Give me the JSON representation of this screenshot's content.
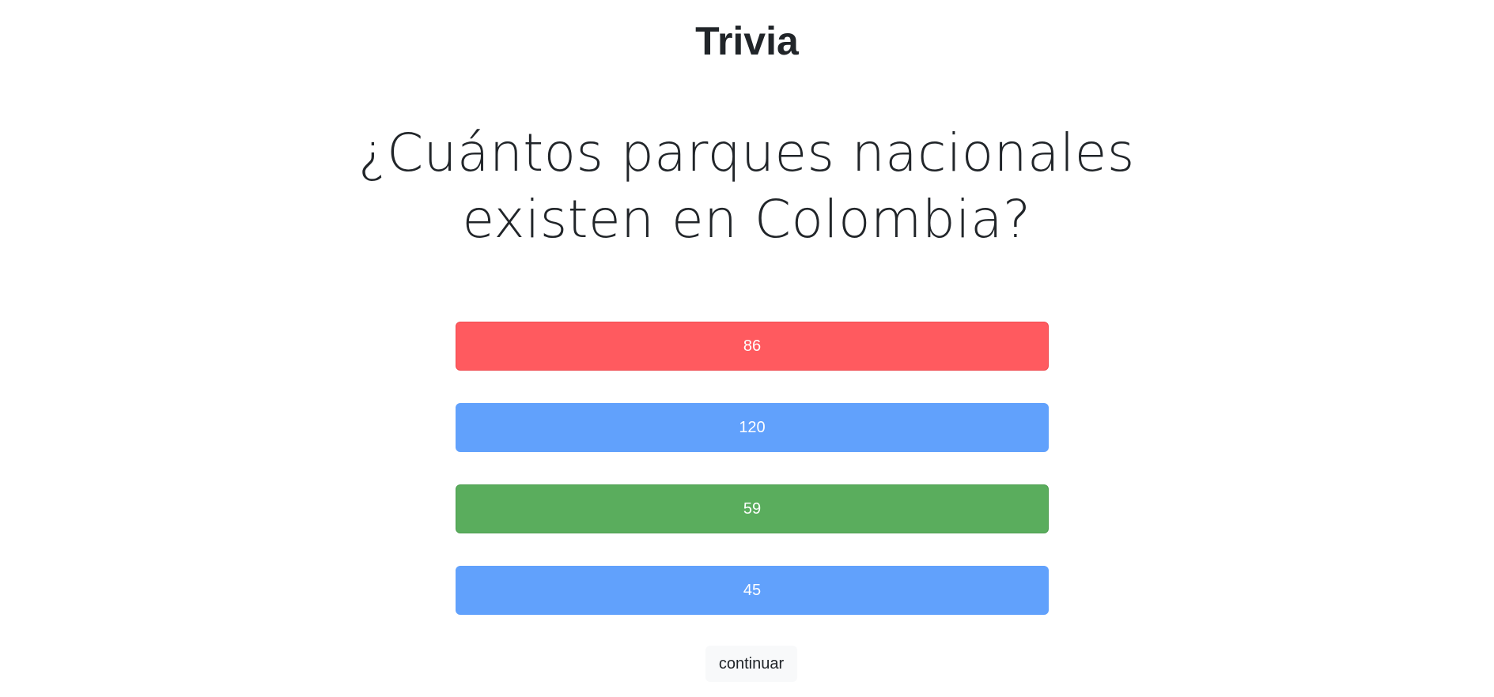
{
  "header": {
    "title": "Trivia"
  },
  "question": {
    "text": "¿Cuántos parques nacionales existen en Colombia?"
  },
  "answers": [
    {
      "label": "86",
      "state": "wrong",
      "color": "#ff5a5f"
    },
    {
      "label": "120",
      "state": "neutral",
      "color": "#61a1fc"
    },
    {
      "label": "59",
      "state": "correct",
      "color": "#5aad5d"
    },
    {
      "label": "45",
      "state": "neutral",
      "color": "#61a1fc"
    }
  ],
  "actions": {
    "continue_label": "continuar"
  }
}
